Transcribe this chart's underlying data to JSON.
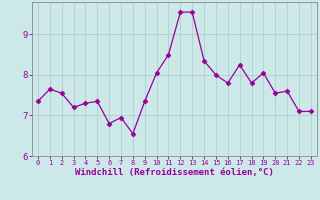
{
  "x": [
    0,
    1,
    2,
    3,
    4,
    5,
    6,
    7,
    8,
    9,
    10,
    11,
    12,
    13,
    14,
    15,
    16,
    17,
    18,
    19,
    20,
    21,
    22,
    23
  ],
  "y": [
    7.35,
    7.65,
    7.55,
    7.2,
    7.3,
    7.35,
    6.8,
    6.95,
    6.55,
    7.35,
    8.05,
    8.5,
    9.55,
    9.55,
    8.35,
    8.0,
    7.8,
    8.25,
    7.8,
    8.05,
    7.55,
    7.6,
    7.1,
    7.1
  ],
  "line_color": "#990099",
  "marker": "D",
  "marker_size": 2.5,
  "bg_color": "#cce8e8",
  "grid_color": "#aacccc",
  "xlabel": "Windchill (Refroidissement éolien,°C)",
  "tick_color": "#990099",
  "ylim": [
    6.0,
    9.8
  ],
  "xlim": [
    -0.5,
    23.5
  ],
  "yticks": [
    6,
    7,
    8,
    9
  ],
  "xticks": [
    0,
    1,
    2,
    3,
    4,
    5,
    6,
    7,
    8,
    9,
    10,
    11,
    12,
    13,
    14,
    15,
    16,
    17,
    18,
    19,
    20,
    21,
    22,
    23
  ],
  "xtick_fontsize": 5.0,
  "ytick_fontsize": 6.5,
  "xlabel_fontsize": 6.5,
  "linewidth": 0.9,
  "spine_color": "#888888"
}
